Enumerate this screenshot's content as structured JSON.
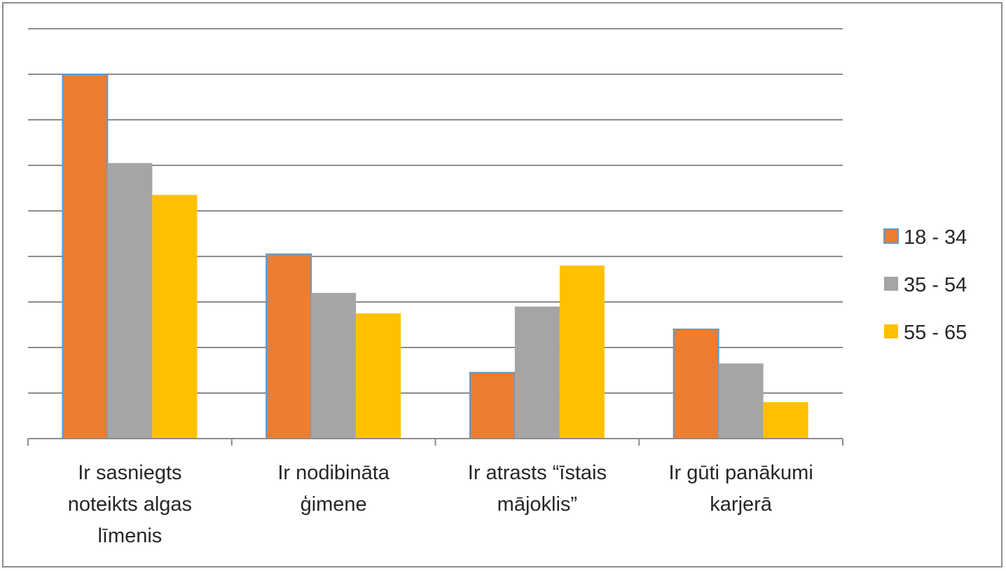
{
  "chart_data": {
    "type": "bar",
    "categories": [
      [
        "Ir sasniegts",
        "noteikts algas",
        "līmenis"
      ],
      [
        "Ir nodibināta",
        "ģimene"
      ],
      [
        "Ir atrasts “īstais",
        "mājoklis”"
      ],
      [
        "Ir gūti panākumi",
        "karjerā"
      ]
    ],
    "series": [
      {
        "name": "18 - 34",
        "color": "#ED7D31",
        "values": [
          8.0,
          4.05,
          1.45,
          2.4
        ]
      },
      {
        "name": "35 - 54",
        "color": "#A5A5A5",
        "values": [
          6.05,
          3.2,
          2.9,
          1.65
        ]
      },
      {
        "name": "55 - 65",
        "color": "#FFC000",
        "values": [
          5.35,
          2.75,
          3.8,
          0.8
        ]
      }
    ],
    "ylim": [
      0,
      9
    ],
    "gridlines": true,
    "legend_position": "right",
    "title": "",
    "xlabel": "",
    "ylabel": ""
  }
}
